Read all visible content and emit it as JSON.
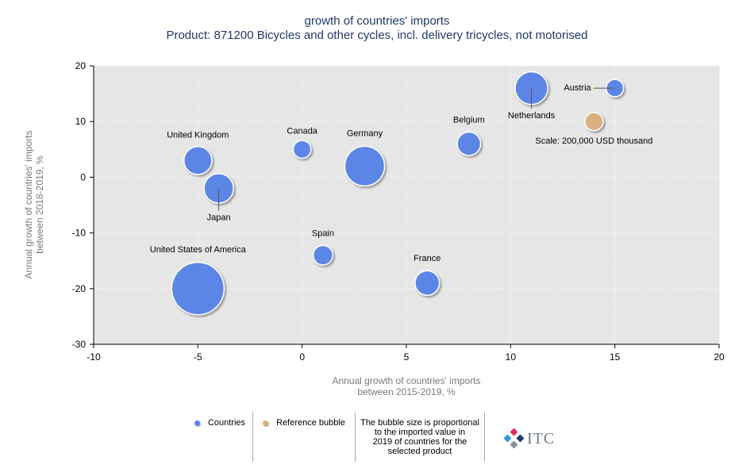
{
  "chart_data": {
    "type": "scatter",
    "title": "growth of countries' imports",
    "subtitle": "Product: 871200 Bicycles and other cycles, incl. delivery tricycles, not motorised",
    "xlabel": [
      "Annual growth of countries' imports",
      "between 2015-2019, %"
    ],
    "ylabel": [
      "Annual growth of countries' imports",
      "between 2018-2019, %"
    ],
    "xlim": [
      -10,
      20
    ],
    "ylim": [
      -30,
      20
    ],
    "xticks": [
      -10,
      -5,
      0,
      5,
      10,
      15,
      20
    ],
    "yticks": [
      -30,
      -20,
      -10,
      0,
      10,
      20
    ],
    "series": [
      {
        "name": "Countries",
        "color": "#5b86e5",
        "points": [
          {
            "label": "United Kingdom",
            "x": -5,
            "y": 3,
            "size": 470000
          },
          {
            "label": "Japan",
            "x": -4,
            "y": -2,
            "size": 520000
          },
          {
            "label": "Canada",
            "x": 0,
            "y": 5,
            "size": 190000
          },
          {
            "label": "Germany",
            "x": 3,
            "y": 2,
            "size": 950000
          },
          {
            "label": "Belgium",
            "x": 8,
            "y": 6,
            "size": 330000
          },
          {
            "label": "Netherlands",
            "x": 11,
            "y": 16,
            "size": 640000
          },
          {
            "label": "Austria",
            "x": 15,
            "y": 16,
            "size": 180000
          },
          {
            "label": "Spain",
            "x": 1,
            "y": -14,
            "size": 230000
          },
          {
            "label": "France",
            "x": 6,
            "y": -19,
            "size": 360000
          },
          {
            "label": "United States of America",
            "x": -5,
            "y": -20,
            "size": 1650000
          }
        ]
      },
      {
        "name": "Reference bubble",
        "color": "#dbb07f",
        "points": [
          {
            "label": "Scale: 200,000 USD thousand",
            "x": 14,
            "y": 10,
            "size": 200000
          }
        ]
      }
    ],
    "legend": {
      "countries": "Countries",
      "reference": "Reference bubble",
      "note": [
        "The bubble size is proportional",
        "to the imported value in",
        "2019 of countries for the",
        "selected product"
      ]
    }
  },
  "logo": {
    "text": "ITC"
  }
}
